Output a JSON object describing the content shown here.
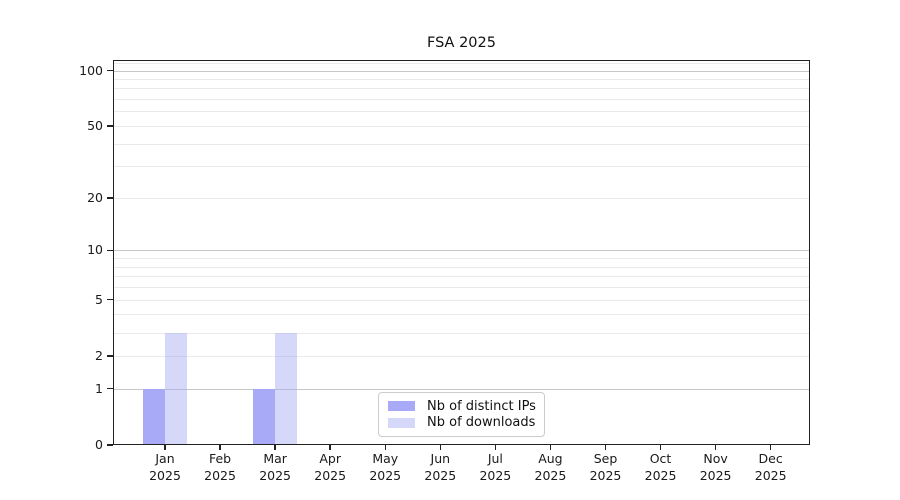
{
  "chart_data": {
    "type": "bar",
    "title": "FSA 2025",
    "categories": [
      {
        "month": "Jan",
        "year": "2025"
      },
      {
        "month": "Feb",
        "year": "2025"
      },
      {
        "month": "Mar",
        "year": "2025"
      },
      {
        "month": "Apr",
        "year": "2025"
      },
      {
        "month": "May",
        "year": "2025"
      },
      {
        "month": "Jun",
        "year": "2025"
      },
      {
        "month": "Jul",
        "year": "2025"
      },
      {
        "month": "Aug",
        "year": "2025"
      },
      {
        "month": "Sep",
        "year": "2025"
      },
      {
        "month": "Oct",
        "year": "2025"
      },
      {
        "month": "Nov",
        "year": "2025"
      },
      {
        "month": "Dec",
        "year": "2025"
      }
    ],
    "series": [
      {
        "name": "Nb of distinct IPs",
        "values": [
          1,
          0,
          1,
          0,
          0,
          0,
          0,
          0,
          0,
          0,
          0,
          0
        ],
        "bar_color": "rgba(168,170,247,1)",
        "swatch_color": "#a8aaf7"
      },
      {
        "name": "Nb of downloads",
        "values": [
          3,
          0,
          3,
          0,
          0,
          0,
          0,
          0,
          0,
          0,
          0,
          0
        ],
        "bar_color": "rgba(165,168,245,0.45)",
        "swatch_color": "#d6d8f9"
      }
    ],
    "y_scale": "log1p",
    "ylim": [
      0,
      114
    ],
    "y_ticks": [
      0,
      1,
      2,
      5,
      10,
      20,
      50,
      100
    ],
    "y_major_gridlines": [
      1,
      10,
      100
    ],
    "y_minor_gridlines": [
      2,
      3,
      4,
      5,
      6,
      7,
      8,
      9,
      20,
      30,
      40,
      50,
      60,
      70,
      80,
      90,
      110
    ],
    "legend_position": "bottom-center-inside",
    "grid": "horizontal",
    "style": {
      "axis_color": "#222222",
      "grid_major_color": "#c6c6c6",
      "grid_minor_color": "#eaeaea",
      "text_color": "#1a1a1a",
      "background": "#ffffff"
    }
  }
}
